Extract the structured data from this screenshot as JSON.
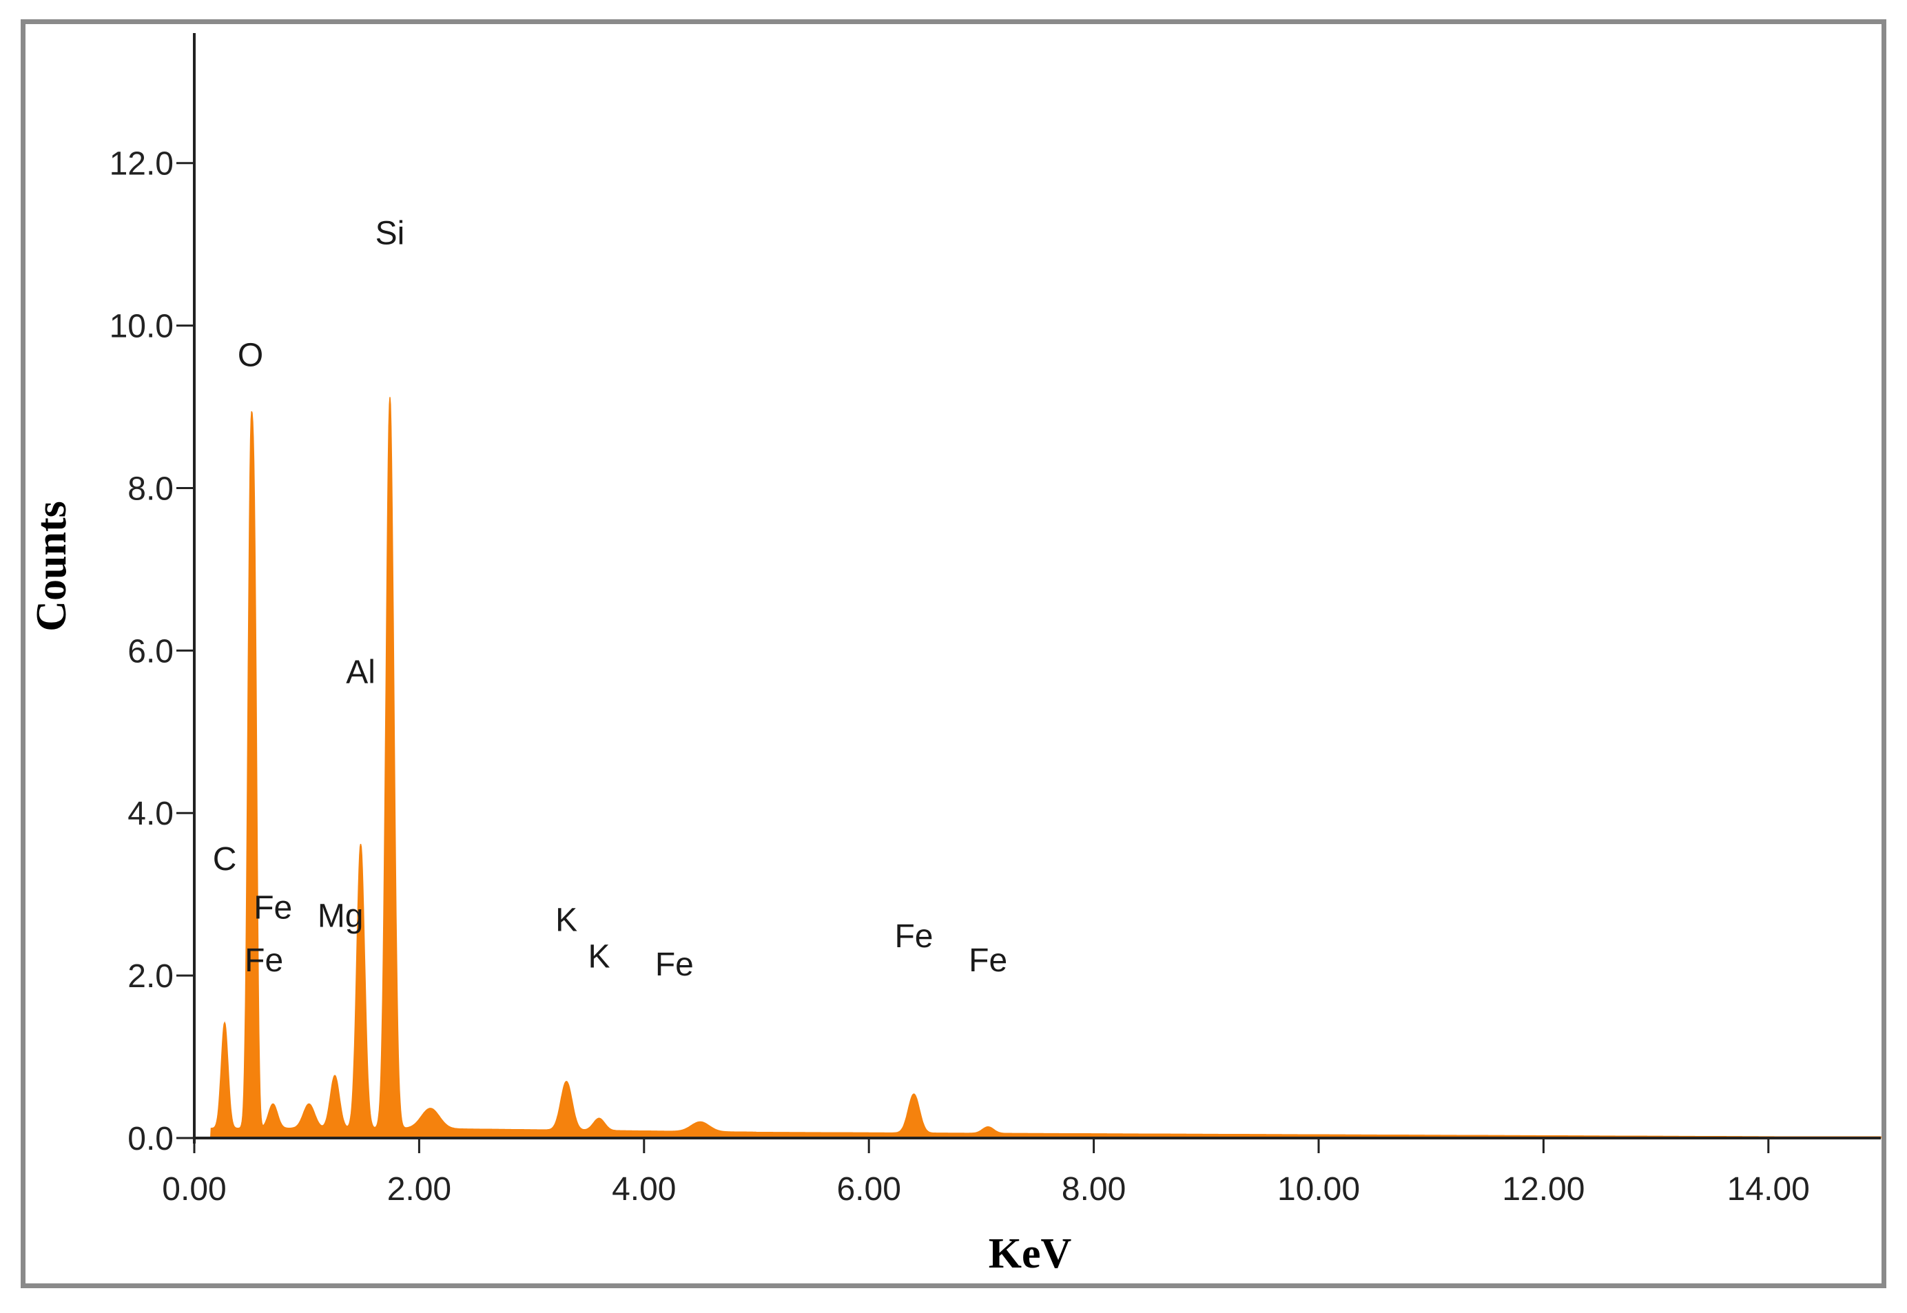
{
  "chart_data": {
    "type": "area",
    "title": "",
    "xlabel": "KeV",
    "ylabel": "Counts",
    "xlim": [
      0,
      15
    ],
    "ylim": [
      0,
      13.6
    ],
    "grid": false,
    "legend": "none",
    "colors": {
      "spectrum": "#F5820D",
      "axis": "#222222",
      "frame": "#8A8A8A"
    },
    "x_ticks": [
      {
        "value": 0,
        "label": "0.00"
      },
      {
        "value": 2,
        "label": "2.00"
      },
      {
        "value": 4,
        "label": "4.00"
      },
      {
        "value": 6,
        "label": "6.00"
      },
      {
        "value": 8,
        "label": "8.00"
      },
      {
        "value": 10,
        "label": "10.00"
      },
      {
        "value": 12,
        "label": "12.00"
      },
      {
        "value": 14,
        "label": "14.00"
      }
    ],
    "y_ticks": [
      {
        "value": 0,
        "label": "0.0"
      },
      {
        "value": 2,
        "label": "2.0"
      },
      {
        "value": 4,
        "label": "4.0"
      },
      {
        "value": 6,
        "label": "6.0"
      },
      {
        "value": 8,
        "label": "8.0"
      },
      {
        "value": 10,
        "label": "10.0"
      },
      {
        "value": 12,
        "label": "12.0"
      }
    ],
    "peaks": [
      {
        "center": 0.27,
        "height": 1.3,
        "width": 0.03
      },
      {
        "center": 0.5,
        "height": 7.8,
        "width": 0.025
      },
      {
        "center": 0.54,
        "height": 5.0,
        "width": 0.02
      },
      {
        "center": 0.7,
        "height": 0.3,
        "width": 0.04
      },
      {
        "center": 1.02,
        "height": 0.3,
        "width": 0.05
      },
      {
        "center": 1.25,
        "height": 0.65,
        "width": 0.04
      },
      {
        "center": 1.48,
        "height": 3.5,
        "width": 0.035
      },
      {
        "center": 1.74,
        "height": 9.0,
        "width": 0.035
      },
      {
        "center": 2.1,
        "height": 0.25,
        "width": 0.08
      },
      {
        "center": 3.31,
        "height": 0.6,
        "width": 0.05
      },
      {
        "center": 3.6,
        "height": 0.15,
        "width": 0.05
      },
      {
        "center": 4.5,
        "height": 0.12,
        "width": 0.08
      },
      {
        "center": 6.4,
        "height": 0.48,
        "width": 0.05
      },
      {
        "center": 7.06,
        "height": 0.08,
        "width": 0.05
      }
    ],
    "peak_labels": [
      {
        "text": "Si",
        "x": 1.74,
        "y": 11.0
      },
      {
        "text": "O",
        "x": 0.5,
        "y": 9.5
      },
      {
        "text": "Al",
        "x": 1.48,
        "y": 5.6
      },
      {
        "text": "C",
        "x": 0.27,
        "y": 3.3
      },
      {
        "text": "Fe",
        "x": 0.7,
        "y": 2.7
      },
      {
        "text": "Mg",
        "x": 1.3,
        "y": 2.6
      },
      {
        "text": "Fe",
        "x": 0.62,
        "y": 2.05
      },
      {
        "text": "K",
        "x": 3.31,
        "y": 2.55
      },
      {
        "text": "K",
        "x": 3.6,
        "y": 2.1
      },
      {
        "text": "Fe",
        "x": 4.27,
        "y": 2.0
      },
      {
        "text": "Fe",
        "x": 6.4,
        "y": 2.35
      },
      {
        "text": "Fe",
        "x": 7.06,
        "y": 2.05
      }
    ]
  }
}
